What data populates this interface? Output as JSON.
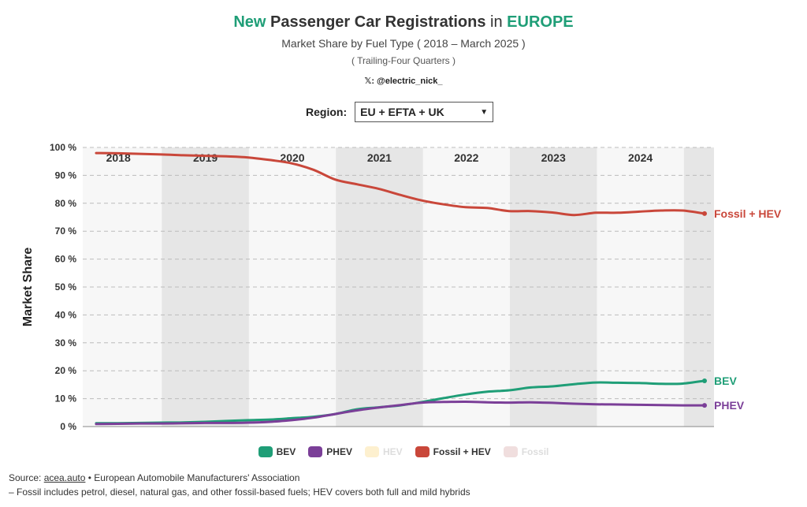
{
  "header": {
    "title_new": "New",
    "title_main": "Passenger Car Registrations",
    "title_in": "in",
    "title_region": "EUROPE",
    "subtitle": "Market Share by Fuel Type ( 2018 – March 2025 )",
    "subtitle2": "( Trailing-Four Quarters )",
    "handle": "𝕏: @electric_nick_"
  },
  "region": {
    "label": "Region:",
    "value": "EU + EFTA + UK"
  },
  "colors": {
    "bev": "#1f9e77",
    "phev": "#7b3f98",
    "fossil_hev": "#c9473a",
    "hev": "#fdf0cf",
    "fossil": "#f0dede",
    "band": "#e6e6e6",
    "plot_bg": "#f7f7f7"
  },
  "chart_data": {
    "type": "line",
    "ylabel": "Market Share",
    "ylim": [
      0,
      100
    ],
    "y_ticks": [
      "0 %",
      "10 %",
      "20 %",
      "30 %",
      "40 %",
      "50 %",
      "60 %",
      "70 %",
      "80 %",
      "90 %",
      "100 %"
    ],
    "year_labels": [
      "2018",
      "2019",
      "2020",
      "2021",
      "2022",
      "2023",
      "2024"
    ],
    "x": [
      "2018Q1",
      "2018Q2",
      "2018Q3",
      "2018Q4",
      "2019Q1",
      "2019Q2",
      "2019Q3",
      "2019Q4",
      "2020Q1",
      "2020Q2",
      "2020Q3",
      "2020Q4",
      "2021Q1",
      "2021Q2",
      "2021Q3",
      "2021Q4",
      "2022Q1",
      "2022Q2",
      "2022Q3",
      "2022Q4",
      "2023Q1",
      "2023Q2",
      "2023Q3",
      "2023Q4",
      "2024Q1",
      "2024Q2",
      "2024Q3",
      "2024Q4",
      "2025Q1"
    ],
    "series": [
      {
        "name": "Fossil + HEV",
        "key": "fossil_hev",
        "values": [
          98.0,
          97.9,
          97.7,
          97.5,
          97.2,
          97.0,
          96.8,
          96.4,
          95.5,
          94.3,
          92.0,
          88.5,
          86.8,
          85.2,
          83.0,
          81.0,
          79.6,
          78.6,
          78.3,
          77.2,
          77.2,
          76.7,
          75.8,
          76.6,
          76.6,
          77.0,
          77.4,
          77.4,
          76.3
        ]
      },
      {
        "name": "BEV",
        "key": "bev",
        "values": [
          1.2,
          1.2,
          1.3,
          1.4,
          1.5,
          1.7,
          2.0,
          2.3,
          2.5,
          3.0,
          3.5,
          4.5,
          6.2,
          6.9,
          7.6,
          8.8,
          10.2,
          11.5,
          12.5,
          13.0,
          14.0,
          14.4,
          15.2,
          15.8,
          15.7,
          15.6,
          15.3,
          15.4,
          16.4
        ]
      },
      {
        "name": "PHEV",
        "key": "phev",
        "values": [
          0.9,
          1.0,
          1.1,
          1.1,
          1.2,
          1.3,
          1.3,
          1.4,
          1.7,
          2.3,
          3.2,
          4.5,
          5.8,
          6.8,
          7.7,
          8.6,
          8.8,
          8.9,
          8.7,
          8.6,
          8.7,
          8.5,
          8.2,
          8.0,
          7.9,
          7.8,
          7.7,
          7.6,
          7.6
        ]
      }
    ],
    "end_labels": [
      {
        "key": "fossil_hev",
        "text": "Fossil + HEV"
      },
      {
        "key": "bev",
        "text": "BEV"
      },
      {
        "key": "phev",
        "text": "PHEV"
      }
    ],
    "legend": [
      {
        "key": "bev",
        "label": "BEV",
        "muted": false
      },
      {
        "key": "phev",
        "label": "PHEV",
        "muted": false
      },
      {
        "key": "hev",
        "label": "HEV",
        "muted": true
      },
      {
        "key": "fossil_hev",
        "label": "Fossil + HEV",
        "muted": false
      },
      {
        "key": "fossil",
        "label": "Fossil",
        "muted": true
      }
    ]
  },
  "footer": {
    "source_prefix": "Source: ",
    "source_link": "acea.auto",
    "source_rest": " • European Automobile Manufacturers' Association",
    "note": "– Fossil includes petrol, diesel, natural gas, and other fossil-based fuels; HEV covers both full and mild hybrids"
  }
}
